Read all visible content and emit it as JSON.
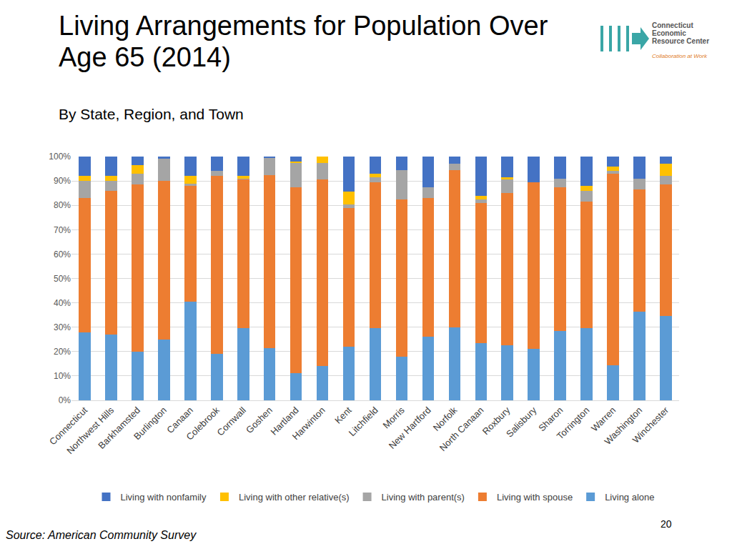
{
  "chart_data": {
    "type": "bar",
    "title": "Living Arrangements for Population Over Age 65 (2014)",
    "subtitle": "By State, Region, and Town",
    "stacked": true,
    "grid": true,
    "legend": "bottom",
    "ylim": [
      0,
      100
    ],
    "yticks": [
      {
        "value": 0,
        "label": "0%"
      },
      {
        "value": 10,
        "label": "10%"
      },
      {
        "value": 20,
        "label": "20%"
      },
      {
        "value": 30,
        "label": "30%"
      },
      {
        "value": 40,
        "label": "40%"
      },
      {
        "value": 50,
        "label": "50%"
      },
      {
        "value": 60,
        "label": "60%"
      },
      {
        "value": 70,
        "label": "70%"
      },
      {
        "value": 80,
        "label": "80%"
      },
      {
        "value": 90,
        "label": "90%"
      },
      {
        "value": 100,
        "label": "100%"
      }
    ],
    "categories": [
      "Connecticut",
      "Northwest Hills",
      "Barkhamsted",
      "Burlington",
      "Canaan",
      "Colebrook",
      "Cornwall",
      "Goshen",
      "Hartland",
      "Harwinton",
      "Kent",
      "Litchfield",
      "Morris",
      "New Hartford",
      "Norfolk",
      "North Canaan",
      "Roxbury",
      "Salisbury",
      "Sharon",
      "Torrington",
      "Warren",
      "Washington",
      "Winchester"
    ],
    "series": [
      {
        "name": "Living alone",
        "color": "#5b9bd5",
        "values": [
          28,
          27,
          20,
          25,
          40.5,
          19,
          29.5,
          21.5,
          11,
          14,
          22,
          29.5,
          18,
          26,
          30,
          23.5,
          22.5,
          21,
          28.5,
          29.5,
          14.5,
          36.5,
          34.5
        ]
      },
      {
        "name": "Living with spouse",
        "color": "#ed7d31",
        "values": [
          55,
          59,
          68.5,
          65,
          47.5,
          73,
          61,
          71,
          76.5,
          76.5,
          57,
          60,
          64.5,
          57,
          64.5,
          57.5,
          62.5,
          68.5,
          59,
          52,
          78.5,
          50,
          54
        ]
      },
      {
        "name": "Living with parent(s)",
        "color": "#a5a5a5",
        "values": [
          7,
          4,
          4.5,
          9,
          1,
          2,
          0.5,
          7,
          10,
          7,
          1.5,
          2,
          12,
          4.5,
          2.5,
          1.5,
          5.5,
          0,
          3.5,
          4.5,
          1,
          4.5,
          3.5
        ]
      },
      {
        "name": "Living with other relative(s)",
        "color": "#ffc000",
        "values": [
          2,
          2,
          3.5,
          0,
          3,
          0,
          1,
          0,
          0.5,
          2.5,
          5,
          1.5,
          0,
          0,
          0,
          1.5,
          1,
          0,
          0,
          2,
          2,
          0,
          5
        ]
      },
      {
        "name": "Living with nonfamily",
        "color": "#4472c4",
        "values": [
          8,
          8,
          3.5,
          1,
          8,
          6,
          8,
          0.5,
          2,
          0,
          14.5,
          7,
          5.5,
          12.5,
          3,
          16,
          8.5,
          10.5,
          9,
          12,
          4,
          9,
          3
        ]
      }
    ]
  },
  "page": {
    "source": "Source: American Community Survey",
    "page_number": "20",
    "logo": {
      "lines": [
        "Connecticut",
        "Economic",
        "Resource Center"
      ],
      "tagline": "Collaboration at Work"
    }
  }
}
